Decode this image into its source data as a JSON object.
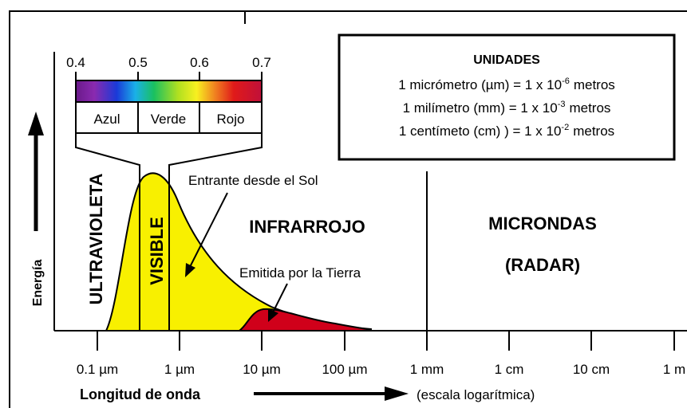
{
  "visible_scale": {
    "ticks": [
      "0.4",
      "0.5",
      "0.6",
      "0.7"
    ],
    "colors": [
      "Azul",
      "Verde",
      "Rojo"
    ]
  },
  "units_box": {
    "title": "UNIDADES",
    "lines": [
      {
        "text": "1 micrómetro (µm) = 1 x 10",
        "exponent": "-6",
        "unit": "metros"
      },
      {
        "text": "1 milímetro (mm) = 1 x 10",
        "exponent": "-3",
        "unit": "metros"
      },
      {
        "text": "1 centímeto (cm) ) = 1 x 10",
        "exponent": "-2",
        "unit": "metros"
      }
    ]
  },
  "regions": {
    "uv": "ULTRAVIOLETA",
    "visible": "VISIBLE",
    "ir": "INFRARROJO",
    "micro": "MICRONDAS",
    "radar": "(RADAR)"
  },
  "annotations": {
    "sun": "Entrante desde el Sol",
    "earth": "Emitida por la Tierra"
  },
  "y_axis_label": "Energía",
  "x_ticks": [
    "0.1 µm",
    "1 µm",
    "10 µm",
    "100 µm",
    "1 mm",
    "1 cm",
    "10 cm",
    "1 m"
  ],
  "x_axis": {
    "title": "Longitud de onda",
    "note": "(escala logarítmica)"
  }
}
